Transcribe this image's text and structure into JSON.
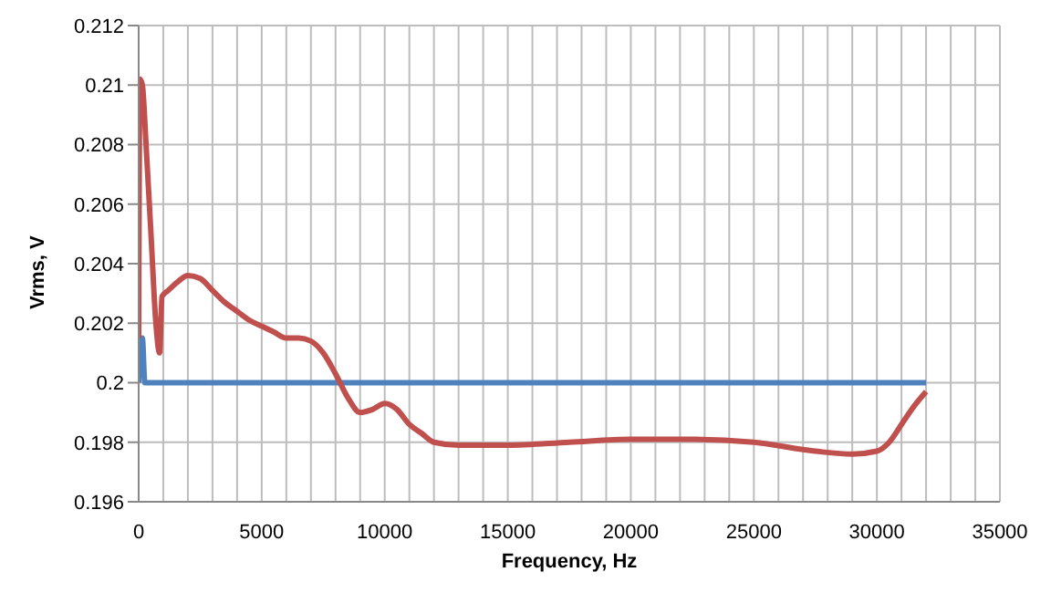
{
  "chart_data": {
    "type": "line",
    "xlabel": "Frequency, Hz",
    "ylabel": "Vrms, V",
    "xlim": [
      0,
      35000
    ],
    "xticks": [
      0,
      {
        "value": 1000,
        "label": null
      },
      {
        "value": 2000,
        "label": null
      },
      {
        "value": 3000,
        "label": null
      },
      {
        "value": 4000,
        "label": null
      },
      5000,
      {
        "value": 6000,
        "label": null
      },
      {
        "value": 7000,
        "label": null
      },
      {
        "value": 8000,
        "label": null
      },
      {
        "value": 9000,
        "label": null
      },
      10000,
      {
        "value": 11000,
        "label": null
      },
      {
        "value": 12000,
        "label": null
      },
      {
        "value": 13000,
        "label": null
      },
      {
        "value": 14000,
        "label": null
      },
      15000,
      {
        "value": 16000,
        "label": null
      },
      {
        "value": 17000,
        "label": null
      },
      {
        "value": 18000,
        "label": null
      },
      {
        "value": 19000,
        "label": null
      },
      20000,
      {
        "value": 21000,
        "label": null
      },
      {
        "value": 22000,
        "label": null
      },
      {
        "value": 23000,
        "label": null
      },
      {
        "value": 24000,
        "label": null
      },
      25000,
      {
        "value": 26000,
        "label": null
      },
      {
        "value": 27000,
        "label": null
      },
      {
        "value": 28000,
        "label": null
      },
      {
        "value": 29000,
        "label": null
      },
      30000,
      {
        "value": 31000,
        "label": null
      },
      {
        "value": 32000,
        "label": null
      },
      {
        "value": 33000,
        "label": null
      },
      {
        "value": 34000,
        "label": null
      },
      35000
    ],
    "ylim": [
      0.196,
      0.212
    ],
    "yticks": [
      0.196,
      0.198,
      0.2,
      0.202,
      0.204,
      0.206,
      0.208,
      0.21,
      0.212
    ],
    "grid": true,
    "legend": false,
    "marker": "none",
    "line_style": "solid",
    "series": [
      {
        "color": "#4f81bd",
        "x": [
          0,
          50,
          150,
          250,
          400,
          32000
        ],
        "values": [
          0.2,
          0.2013,
          0.2015,
          0.2,
          0.2,
          0.2
        ]
      },
      {
        "color": "#c0504d",
        "x": [
          0,
          50,
          150,
          300,
          500,
          700,
          850,
          950,
          1200,
          1600,
          2000,
          2500,
          3000,
          3500,
          4000,
          4500,
          5000,
          5500,
          6000,
          6500,
          7000,
          7500,
          8000,
          8500,
          9000,
          9500,
          10000,
          10500,
          11000,
          11500,
          12000,
          13000,
          15000,
          17500,
          20000,
          22500,
          25000,
          27500,
          29000,
          30000,
          30500,
          31000,
          31500,
          32000
        ],
        "values": [
          0.2015,
          0.2102,
          0.21,
          0.208,
          0.205,
          0.202,
          0.201,
          0.2029,
          0.2031,
          0.2034,
          0.2036,
          0.2035,
          0.2031,
          0.2027,
          0.2024,
          0.2021,
          0.2019,
          0.2017,
          0.2015,
          0.2015,
          0.2014,
          0.201,
          0.2003,
          0.1995,
          0.199,
          0.1991,
          0.1993,
          0.1991,
          0.1986,
          0.1983,
          0.198,
          0.1979,
          0.1979,
          0.198,
          0.1981,
          0.1981,
          0.198,
          0.1977,
          0.1976,
          0.1977,
          0.198,
          0.1986,
          0.1992,
          0.1997
        ]
      }
    ]
  }
}
